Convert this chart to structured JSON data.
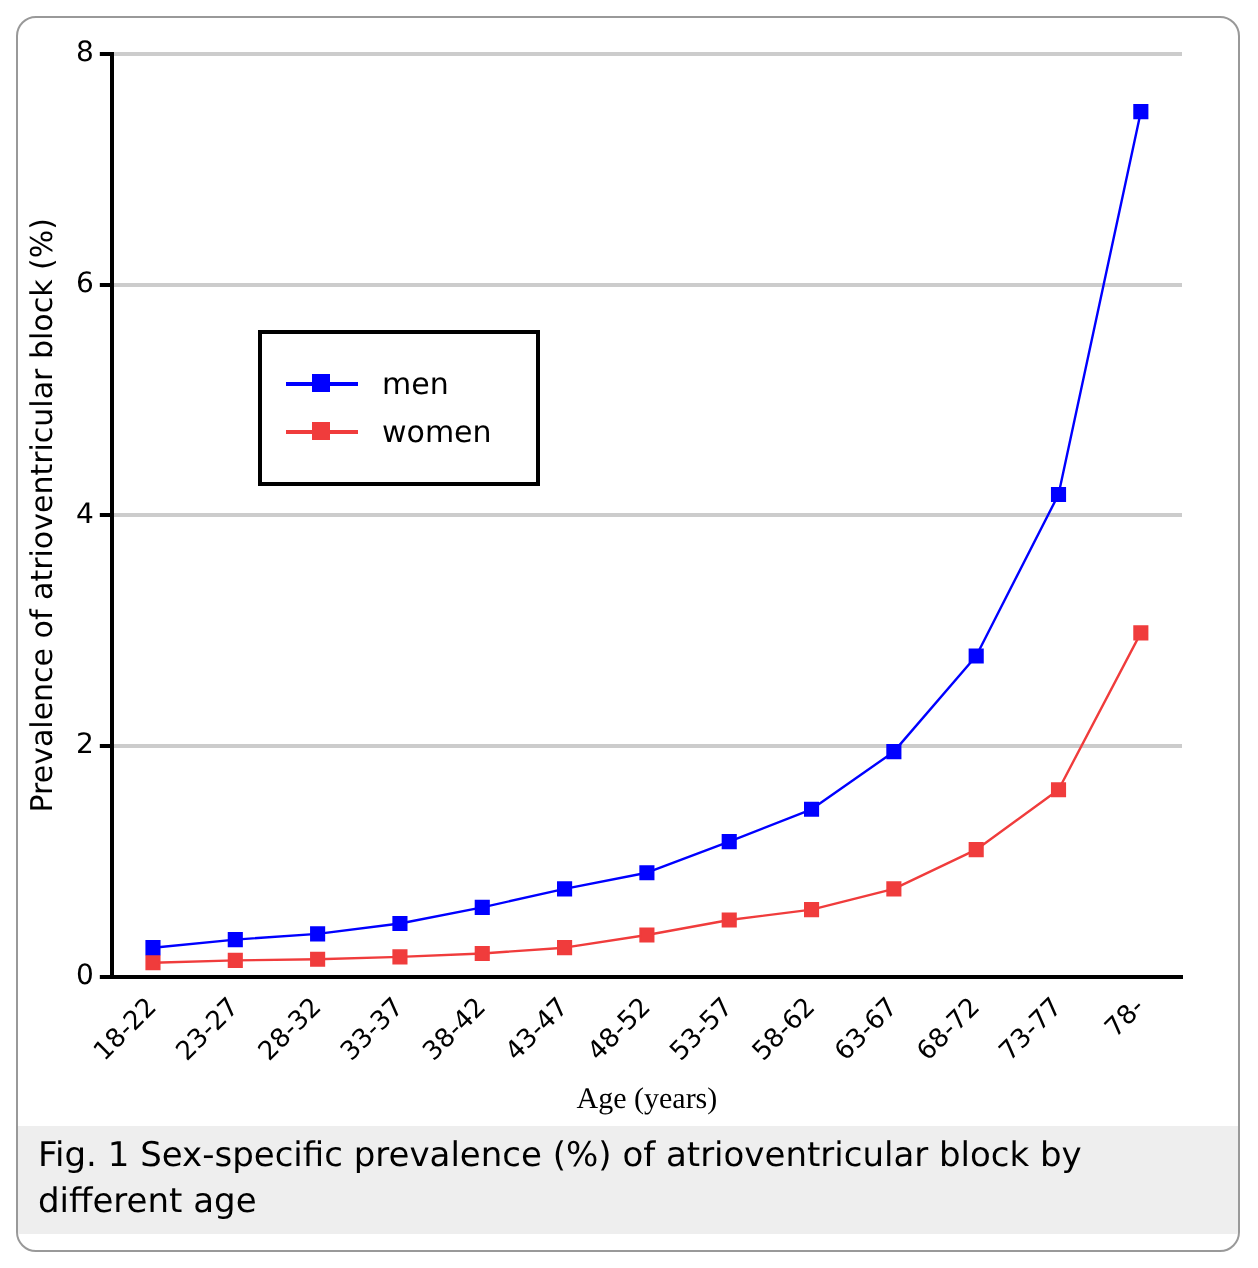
{
  "chart_data": {
    "type": "line",
    "xlabel": "Age (years)",
    "ylabel": "Prevalence of atrioventricular block (%)",
    "annotations": [
      "Fig. 1 Sex-specific prevalence (%) of atrioventricular block by different age"
    ],
    "categories": [
      "18-22",
      "23-27",
      "28-32",
      "33-37",
      "38-42",
      "43-47",
      "48-52",
      "53-57",
      "58-62",
      "63-67",
      "68-72",
      "73-77",
      "78-"
    ],
    "series": [
      {
        "name": "men",
        "color": "#0000ff",
        "values": [
          0.25,
          0.32,
          0.37,
          0.46,
          0.6,
          0.76,
          0.9,
          1.17,
          1.45,
          1.95,
          2.78,
          4.18,
          7.5
        ]
      },
      {
        "name": "women",
        "color": "#f03c3c",
        "values": [
          0.12,
          0.14,
          0.15,
          0.17,
          0.2,
          0.25,
          0.36,
          0.49,
          0.58,
          0.76,
          1.1,
          1.62,
          2.98
        ]
      }
    ],
    "ylim": [
      0,
      8
    ],
    "yticks": [
      0,
      2,
      4,
      6,
      8
    ],
    "grid": "y",
    "legend": "top left",
    "marker": "square",
    "line_style": "solid"
  }
}
